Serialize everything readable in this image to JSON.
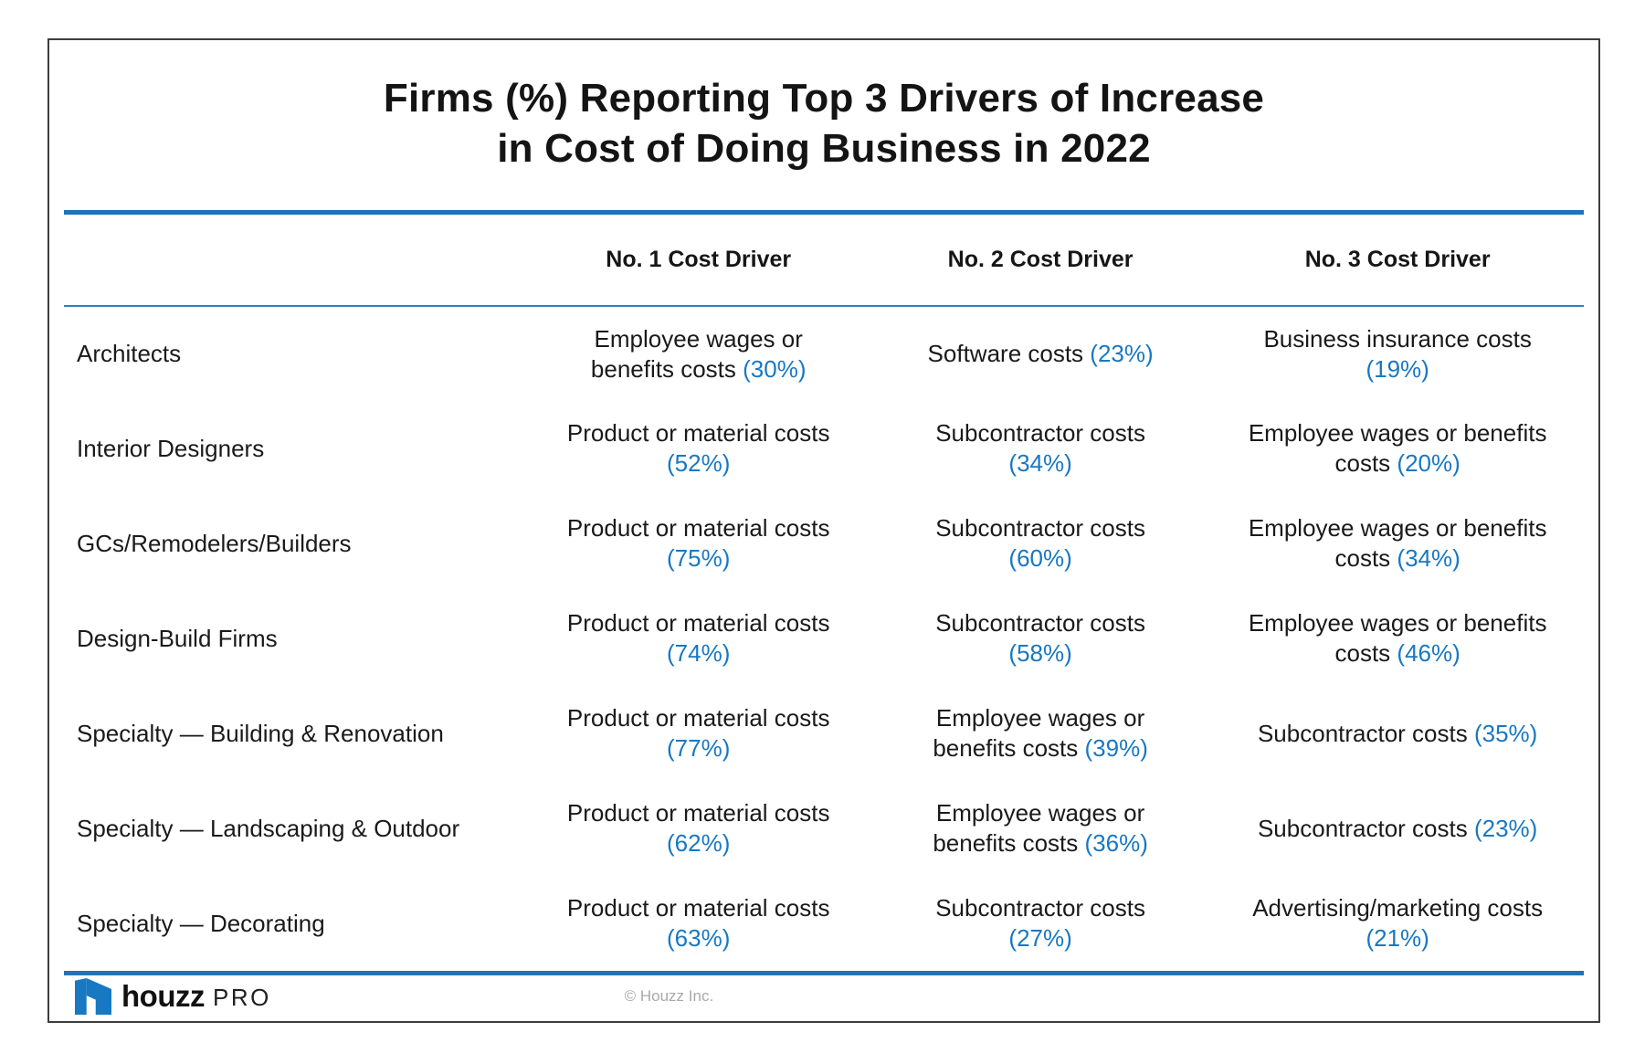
{
  "header": {
    "title_line1": "Firms (%) Reporting Top 3 Drivers of Increase",
    "title_line2": "in Cost of Doing Business in 2022"
  },
  "chart_data": {
    "type": "table",
    "title": "Firms (%) Reporting Top 3 Drivers of Increase in Cost of Doing Business in 2022",
    "columns": [
      "No. 1 Cost Driver",
      "No. 2 Cost Driver",
      "No. 3 Cost Driver"
    ],
    "rows": [
      {
        "firm": "Architects",
        "drivers": [
          {
            "name": "Employee wages or benefits costs",
            "percent": 30
          },
          {
            "name": "Software costs",
            "percent": 23
          },
          {
            "name": "Business insurance costs",
            "percent": 19
          }
        ]
      },
      {
        "firm": "Interior Designers",
        "drivers": [
          {
            "name": "Product or material costs",
            "percent": 52
          },
          {
            "name": "Subcontractor costs",
            "percent": 34
          },
          {
            "name": "Employee wages or benefits costs",
            "percent": 20
          }
        ]
      },
      {
        "firm": "GCs/Remodelers/Builders",
        "drivers": [
          {
            "name": "Product or material costs",
            "percent": 75
          },
          {
            "name": "Subcontractor costs",
            "percent": 60
          },
          {
            "name": "Employee wages or benefits costs",
            "percent": 34
          }
        ]
      },
      {
        "firm": "Design-Build Firms",
        "drivers": [
          {
            "name": "Product or material costs",
            "percent": 74
          },
          {
            "name": "Subcontractor costs",
            "percent": 58
          },
          {
            "name": "Employee wages or benefits costs",
            "percent": 46
          }
        ]
      },
      {
        "firm": "Specialty — Building & Renovation",
        "drivers": [
          {
            "name": "Product or material costs",
            "percent": 77
          },
          {
            "name": "Employee wages or benefits costs",
            "percent": 39
          },
          {
            "name": "Subcontractor costs",
            "percent": 35
          }
        ]
      },
      {
        "firm": "Specialty — Landscaping & Outdoor",
        "drivers": [
          {
            "name": "Product or material costs",
            "percent": 62
          },
          {
            "name": "Employee wages or benefits costs",
            "percent": 36
          },
          {
            "name": "Subcontractor costs",
            "percent": 23
          }
        ]
      },
      {
        "firm": "Specialty — Decorating",
        "drivers": [
          {
            "name": "Product or material costs",
            "percent": 63
          },
          {
            "name": "Subcontractor costs",
            "percent": 27
          },
          {
            "name": "Advertising/marketing costs",
            "percent": 21
          }
        ]
      }
    ]
  },
  "footer": {
    "brand": "houzz",
    "brand_suffix": "PRO",
    "copyright": "© Houzz Inc.",
    "logo_icon": "houzz-house-icon"
  },
  "colors": {
    "accent_blue": "#1878c2",
    "rule_blue": "#2172b8",
    "border_dark": "#3d3d3d",
    "copyright_gray": "#a9a9a9"
  }
}
